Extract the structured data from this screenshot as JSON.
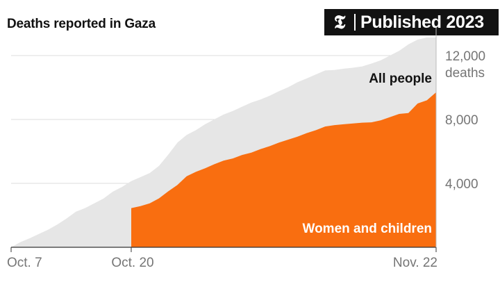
{
  "header": {
    "title": "Deaths reported in Gaza"
  },
  "badge": {
    "logo_glyph": "𝕿",
    "text": "Published 2023"
  },
  "colors": {
    "all_people": "#e6e6e6",
    "women_children": "#f96e10",
    "gridline": "#dcdcdc",
    "baseline": "#333333"
  },
  "chart_data": {
    "type": "area",
    "title": "Deaths reported in Gaza",
    "xlabel": "",
    "ylabel": "",
    "y_unit_label": "deaths",
    "ylim": [
      0,
      12000
    ],
    "yticks": [
      4000,
      8000,
      12000
    ],
    "ytick_labels": [
      "4,000",
      "8,000",
      "12,000"
    ],
    "xlim": [
      "2023-10-07",
      "2023-11-22"
    ],
    "xticks": [
      "2023-10-07",
      "2023-10-20",
      "2023-11-22"
    ],
    "xtick_labels": [
      "Oct. 7",
      "Oct. 20",
      "Nov. 22"
    ],
    "grid": true,
    "series": [
      {
        "name": "All people",
        "color": "#e6e6e6",
        "points": [
          [
            "2023-10-07",
            0
          ],
          [
            "2023-10-08",
            320
          ],
          [
            "2023-10-09",
            560
          ],
          [
            "2023-10-10",
            830
          ],
          [
            "2023-10-11",
            1100
          ],
          [
            "2023-10-12",
            1420
          ],
          [
            "2023-10-13",
            1800
          ],
          [
            "2023-10-14",
            2220
          ],
          [
            "2023-10-15",
            2450
          ],
          [
            "2023-10-16",
            2750
          ],
          [
            "2023-10-17",
            3050
          ],
          [
            "2023-10-18",
            3480
          ],
          [
            "2023-10-19",
            3780
          ],
          [
            "2023-10-20",
            4140
          ],
          [
            "2023-10-21",
            4390
          ],
          [
            "2023-10-22",
            4650
          ],
          [
            "2023-10-23",
            5090
          ],
          [
            "2023-10-24",
            5790
          ],
          [
            "2023-10-25",
            6550
          ],
          [
            "2023-10-26",
            7030
          ],
          [
            "2023-10-27",
            7330
          ],
          [
            "2023-10-28",
            7700
          ],
          [
            "2023-10-29",
            8010
          ],
          [
            "2023-10-30",
            8310
          ],
          [
            "2023-10-31",
            8530
          ],
          [
            "2023-11-01",
            8800
          ],
          [
            "2023-11-02",
            9060
          ],
          [
            "2023-11-03",
            9250
          ],
          [
            "2023-11-04",
            9490
          ],
          [
            "2023-11-05",
            9770
          ],
          [
            "2023-11-06",
            10020
          ],
          [
            "2023-11-07",
            10330
          ],
          [
            "2023-11-08",
            10570
          ],
          [
            "2023-11-09",
            10820
          ],
          [
            "2023-11-10",
            11070
          ],
          [
            "2023-11-11",
            11100
          ],
          [
            "2023-11-12",
            11180
          ],
          [
            "2023-11-13",
            11240
          ],
          [
            "2023-11-14",
            11320
          ],
          [
            "2023-11-15",
            11500
          ],
          [
            "2023-11-16",
            11700
          ],
          [
            "2023-11-17",
            12000
          ],
          [
            "2023-11-18",
            12300
          ],
          [
            "2023-11-19",
            12700
          ],
          [
            "2023-11-20",
            13000
          ],
          [
            "2023-11-21",
            13300
          ],
          [
            "2023-11-22",
            14100
          ]
        ]
      },
      {
        "name": "Women and children",
        "color": "#f96e10",
        "points": [
          [
            "2023-10-20",
            2450
          ],
          [
            "2023-10-21",
            2580
          ],
          [
            "2023-10-22",
            2750
          ],
          [
            "2023-10-23",
            3060
          ],
          [
            "2023-10-24",
            3500
          ],
          [
            "2023-10-25",
            3900
          ],
          [
            "2023-10-26",
            4450
          ],
          [
            "2023-10-27",
            4720
          ],
          [
            "2023-10-28",
            4950
          ],
          [
            "2023-10-29",
            5200
          ],
          [
            "2023-10-30",
            5420
          ],
          [
            "2023-10-31",
            5560
          ],
          [
            "2023-11-01",
            5780
          ],
          [
            "2023-11-02",
            5920
          ],
          [
            "2023-11-03",
            6150
          ],
          [
            "2023-11-04",
            6330
          ],
          [
            "2023-11-05",
            6550
          ],
          [
            "2023-11-06",
            6740
          ],
          [
            "2023-11-07",
            6920
          ],
          [
            "2023-11-08",
            7150
          ],
          [
            "2023-11-09",
            7330
          ],
          [
            "2023-11-10",
            7560
          ],
          [
            "2023-11-11",
            7650
          ],
          [
            "2023-11-12",
            7700
          ],
          [
            "2023-11-13",
            7750
          ],
          [
            "2023-11-14",
            7800
          ],
          [
            "2023-11-15",
            7820
          ],
          [
            "2023-11-16",
            7950
          ],
          [
            "2023-11-17",
            8150
          ],
          [
            "2023-11-18",
            8350
          ],
          [
            "2023-11-19",
            8400
          ],
          [
            "2023-11-20",
            9000
          ],
          [
            "2023-11-21",
            9200
          ],
          [
            "2023-11-22",
            9700
          ]
        ]
      }
    ]
  }
}
